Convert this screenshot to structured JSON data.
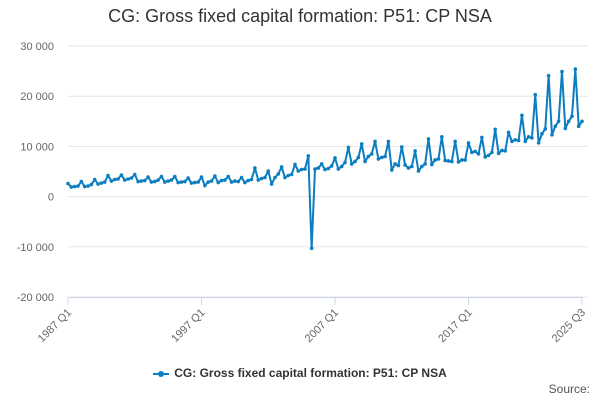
{
  "chart_data": {
    "type": "line",
    "title": "CG: Gross fixed capital formation: P51: CP NSA",
    "xlabel": "",
    "ylabel": "",
    "start": "1987 Q1",
    "end": "2025 Q3",
    "x_tick_labels": [
      "1987 Q1",
      "1997 Q1",
      "2007 Q1",
      "2017 Q1",
      "2025 Q3"
    ],
    "y_tick_labels": [
      "30 000",
      "20 000",
      "10 000",
      "0",
      "-10 000",
      "-20 000"
    ],
    "ylim": [
      -20000,
      30000
    ],
    "grid": true,
    "legend_position": "bottom",
    "color": "#0b7dc1",
    "series": [
      {
        "name": "CG: Gross fixed capital formation: P51: CP NSA",
        "values": [
          2600,
          1900,
          2000,
          2100,
          3000,
          2000,
          2100,
          2400,
          3400,
          2500,
          2700,
          2900,
          4200,
          3100,
          3400,
          3500,
          4300,
          3300,
          3500,
          3700,
          4400,
          3000,
          3100,
          3200,
          3900,
          2900,
          3000,
          3300,
          4000,
          2900,
          3100,
          3300,
          4000,
          2800,
          2900,
          3000,
          3700,
          2700,
          2800,
          2900,
          3900,
          2200,
          2900,
          3100,
          4100,
          2800,
          3200,
          3300,
          4000,
          2900,
          3100,
          3000,
          3800,
          2800,
          3200,
          3400,
          5700,
          3300,
          3600,
          3800,
          5100,
          2500,
          3800,
          4500,
          5900,
          3800,
          4200,
          4400,
          6400,
          5100,
          5400,
          5500,
          8100,
          -10300,
          5500,
          5700,
          6500,
          5400,
          5600,
          6100,
          7700,
          5500,
          6000,
          6800,
          9800,
          6500,
          7000,
          7800,
          10500,
          7000,
          8000,
          8500,
          11000,
          7500,
          7800,
          8000,
          11000,
          5300,
          6500,
          6200,
          9900,
          6300,
          5700,
          6000,
          9100,
          5100,
          6000,
          6500,
          11500,
          6400,
          7300,
          7500,
          11900,
          7200,
          7100,
          7000,
          11000,
          6900,
          7300,
          7300,
          10700,
          8800,
          9000,
          8500,
          11800,
          7900,
          8200,
          8800,
          13400,
          8600,
          9200,
          9100,
          12800,
          11000,
          11300,
          11200,
          16200,
          11000,
          11900,
          11700,
          20300,
          10700,
          12500,
          13500,
          24100,
          12300,
          14000,
          15000,
          24900,
          13600,
          15000,
          16000,
          25400,
          14000,
          15000
        ]
      }
    ],
    "source_label": "Source:"
  }
}
